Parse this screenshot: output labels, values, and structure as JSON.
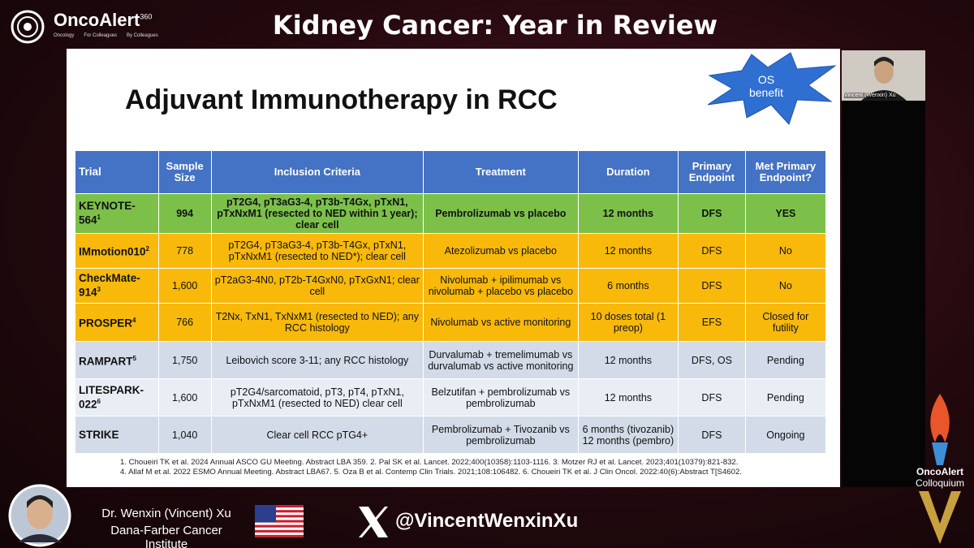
{
  "header": {
    "logo": "OncoAlert",
    "logo_sup": "360",
    "tagline": [
      "Oncology",
      "For Colleagues",
      "By Colleagues"
    ],
    "title": "Kidney Cancer: Year in Review"
  },
  "slide": {
    "title": "Adjuvant Immunotherapy in RCC",
    "callout": "OS benefit",
    "columns": [
      "Trial",
      "Sample Size",
      "Inclusion Criteria",
      "Treatment",
      "Duration",
      "Primary Endpoint",
      "Met Primary Endpoint?"
    ],
    "rows": [
      {
        "trial": "KEYNOTE-564",
        "ref": "1",
        "sample": "994",
        "inclusion": "pT2G4, pT3aG3-4, pT3b-T4Gx, pTxN1, pTxNxM1 (resected to NED within 1 year); clear cell",
        "treatment": "Pembrolizumab vs placebo",
        "duration": "12 months",
        "endpoint": "DFS",
        "met": "YES"
      },
      {
        "trial": "IMmotion010",
        "ref": "2",
        "sample": "778",
        "inclusion": "pT2G4, pT3aG3-4, pT3b-T4Gx, pTxN1, pTxNxM1 (resected to NED*); clear cell",
        "treatment": "Atezolizumab vs placebo",
        "duration": "12 months",
        "endpoint": "DFS",
        "met": "No"
      },
      {
        "trial": "CheckMate-914",
        "ref": "3",
        "sample": "1,600",
        "inclusion": "pT2aG3-4N0, pT2b-T4GxN0, pTxGxN1; clear cell",
        "treatment": "Nivolumab + ipilimumab vs nivolumab + placebo vs placebo",
        "duration": "6 months",
        "endpoint": "DFS",
        "met": "No"
      },
      {
        "trial": "PROSPER",
        "ref": "4",
        "sample": "766",
        "inclusion": "T2Nx, TxN1, TxNxM1 (resected to NED); any RCC histology",
        "treatment": "Nivolumab vs active monitoring",
        "duration": "10 doses total (1 preop)",
        "endpoint": "EFS",
        "met": "Closed for futility"
      },
      {
        "trial": "RAMPART",
        "ref": "5",
        "sample": "1,750",
        "inclusion": "Leibovich score 3-11; any RCC histology",
        "treatment": "Durvalumab + tremelimumab vs durvalumab vs active monitoring",
        "duration": "12 months",
        "endpoint": "DFS, OS",
        "met": "Pending"
      },
      {
        "trial": "LITESPARK-022",
        "ref": "6",
        "sample": "1,600",
        "inclusion": "pT2G4/sarcomatoid, pT3, pT4, pTxN1, pTxNxM1 (resected to NED) clear cell",
        "treatment": "Belzutifan + pembrolizumab vs pembrolizumab",
        "duration": "12 months",
        "endpoint": "DFS",
        "met": "Pending"
      },
      {
        "trial": "STRIKE",
        "ref": "",
        "sample": "1,040",
        "inclusion": "Clear cell RCC pTG4+",
        "treatment": "Pembrolizumab + Tivozanib vs pembrolizumab",
        "duration": "6 months (tivozanib) 12 months (pembro)",
        "endpoint": "DFS",
        "met": "Ongoing"
      }
    ],
    "footnotes": [
      "1. Choueiri TK et al. 2024 Annual ASCO GU Meeting. Abstract LBA 359. 2. Pal SK et al. Lancet. 2022;400(10358):1103-1116. 3. Motzer RJ et al. Lancet. 2023;401(10379):821-832.",
      "4. Allaf M et al. 2022 ESMO Annual Meeting. Abstract LBA67. 5. Oza  B et al. Contemp Clin Trials. 2021;108:106482. 6. Choueiri TK et al. J Clin Oncol. 2022:40(6):Abstract T[S4602."
    ]
  },
  "webcam": {
    "label": "Vincent (Wenxin) Xu"
  },
  "footer": {
    "speaker_name": "Dr. Wenxin (Vincent) Xu",
    "affiliation": "Dana-Farber Cancer Institute",
    "handle": "@VincentWenxinXu",
    "brand": "OncoAlert",
    "brand_sub": "Colloquium"
  }
}
